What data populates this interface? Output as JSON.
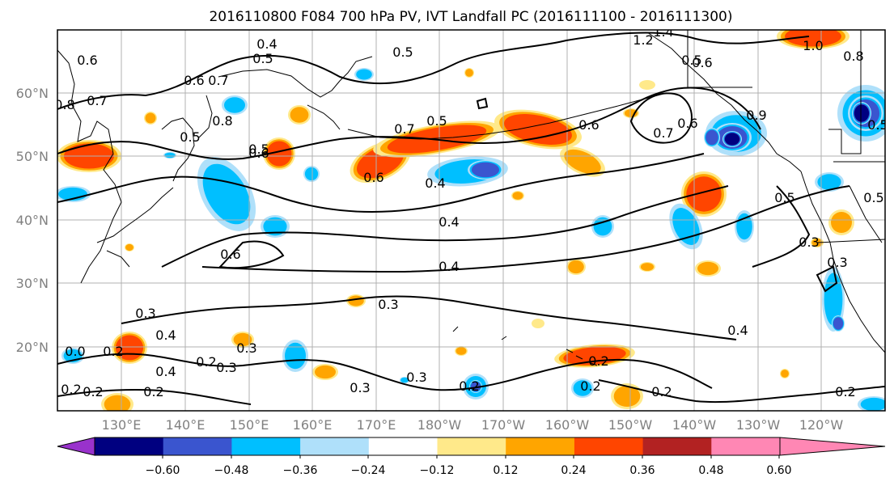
{
  "title": "2016110800 F084 700 hPa PV, IVT Landfall PC (2016111100 - 2016111300)",
  "map": {
    "lat_labels": [
      "60°N",
      "50°N",
      "40°N",
      "30°N",
      "20°N"
    ],
    "lon_labels": [
      "130°E",
      "140°E",
      "150°E",
      "160°E",
      "170°E",
      "180°W",
      "170°W",
      "160°W",
      "150°W",
      "140°W",
      "130°W",
      "120°W"
    ],
    "lat_range": [
      10,
      70
    ],
    "lon_range": [
      120,
      250
    ],
    "contour_labels": [
      "0.6",
      "0.8",
      "0.7",
      "0.4",
      "0.5",
      "0.6",
      "0.7",
      "0.8",
      "0.5",
      "0.6",
      "0.5",
      "0.5",
      "0.7",
      "0.6",
      "0.5",
      "0.6",
      "0.5",
      "1.2",
      "1.4",
      "1.0",
      "0.8",
      "0.6",
      "0.7",
      "0.6",
      "0.5",
      "0.3",
      "0.4",
      "0.6",
      "0.4",
      "0.5",
      "0.3",
      "0.4",
      "0.3",
      "0.2",
      "0.3",
      "0.4",
      "0.3",
      "0.2",
      "0.3",
      "0.2",
      "0.3",
      "0.2",
      "0.4",
      "0.2",
      "0.2",
      "0.2",
      "0.2",
      "0.2",
      "0.0",
      "0.2",
      "0.3",
      "0.5",
      "0.9",
      "0.4"
    ]
  },
  "colorbar": {
    "ticks": [
      "−0.60",
      "−0.48",
      "−0.36",
      "−0.24",
      "−0.12",
      "0.12",
      "0.24",
      "0.36",
      "0.48",
      "0.60"
    ],
    "colors": [
      "#9932cc",
      "#000080",
      "#3a55cf",
      "#00bfff",
      "#afe0fa",
      "#ffffff",
      "#ffe98a",
      "#ffa500",
      "#ff4500",
      "#b22222",
      "#ff87b4"
    ]
  }
}
